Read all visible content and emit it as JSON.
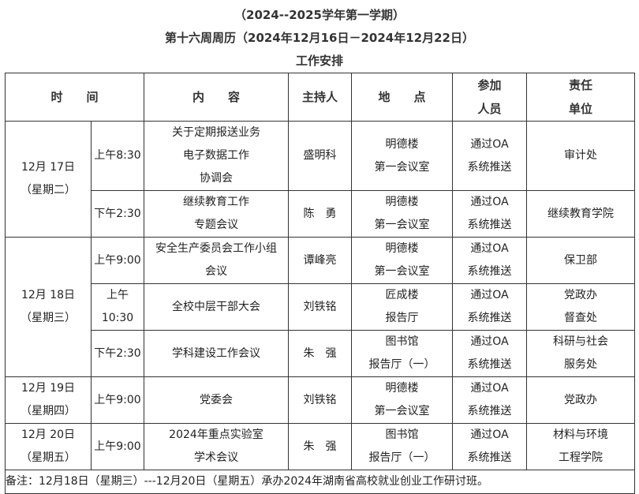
{
  "titles": [
    "（2024--2025学年第一学期）",
    "第十六周周历（2024年12月16日－2024年12月22日）",
    "工作安排"
  ],
  "headers": {
    "time": "时　　间",
    "content": "内　　容",
    "host": "主持人",
    "place": "地　　点",
    "attendees": "参加\n人员",
    "unit": "责任\n单位"
  },
  "groups": [
    {
      "date": "12月 17日\n（星期二）",
      "items": [
        {
          "time": "上午8:30",
          "content": "关于定期报送业务\n电子数据工作\n协调会",
          "host": "盛明科",
          "place": "明德楼\n第一会议室",
          "attendees": "通过OA\n系统推送",
          "unit": "审计处"
        },
        {
          "time": "下午2:30",
          "content": "继续教育工作\n专题会议",
          "host": "陈　勇",
          "place": "明德楼\n第一会议室",
          "attendees": "通过OA\n系统推送",
          "unit": "继续教育学院"
        }
      ]
    },
    {
      "date": "12月 18日\n（星期三）",
      "items": [
        {
          "time": "上午9:00",
          "content": "安全生产委员会工作小组\n会议",
          "host": "谭峰亮",
          "place": "明德楼\n第一会议室",
          "attendees": "通过OA\n系统推送",
          "unit": "保卫部"
        },
        {
          "time": "上午\n10:30",
          "content": "全校中层干部大会",
          "host": "刘铁铭",
          "place": "匠成楼\n报告厅",
          "attendees": "通过OA\n系统推送",
          "unit": "党政办\n督查处"
        },
        {
          "time": "下午2:30",
          "content": "学科建设工作会议",
          "host": "朱　强",
          "place": "图书馆\n报告厅（一）",
          "attendees": "通过OA\n系统推送",
          "unit": "科研与社会\n服务处"
        }
      ]
    },
    {
      "date": "12月 19日\n（星期四）",
      "items": [
        {
          "time": "上午9:00",
          "content": "党委会",
          "host": "刘铁铭",
          "place": "明德楼\n第一会议室",
          "attendees": "通过OA\n系统推送",
          "unit": "党政办"
        }
      ]
    },
    {
      "date": "12月 20日\n（星期五）",
      "items": [
        {
          "time": "上午9:00",
          "content": "2024年重点实验室\n学术会议",
          "host": "朱　强",
          "place": "图书馆\n报告厅（一）",
          "attendees": "通过OA\n系统推送",
          "unit": "材料与环境\n工程学院"
        }
      ]
    }
  ],
  "note": "备注：12月18日（星期三）---12月20日（星期五）承办2024年湖南省高校就业创业工作研讨班。"
}
